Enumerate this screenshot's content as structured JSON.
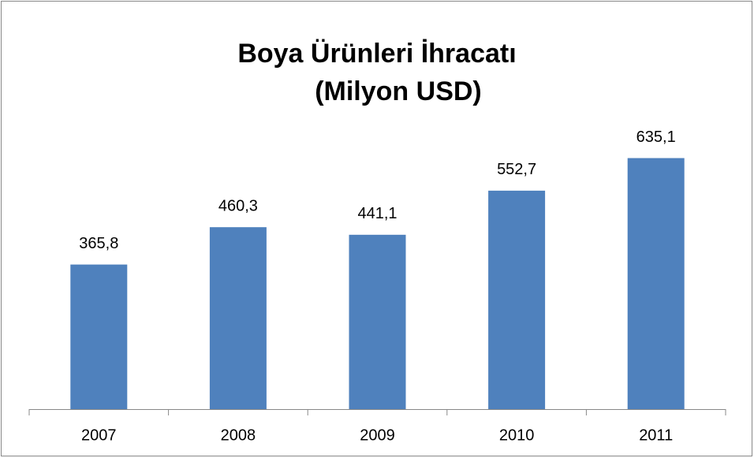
{
  "chart_data": {
    "type": "bar",
    "title": [
      "Boya Ürünleri İhracatı",
      "(Milyon USD)"
    ],
    "categories": [
      "2007",
      "2008",
      "2009",
      "2010",
      "2011"
    ],
    "values": [
      365.8,
      460.3,
      441.1,
      552.7,
      635.1
    ],
    "value_labels": [
      "365,8",
      "460,3",
      "441,1",
      "552,7",
      "635,1"
    ],
    "color": "#4f81bd",
    "ylim": [
      0,
      700
    ]
  }
}
